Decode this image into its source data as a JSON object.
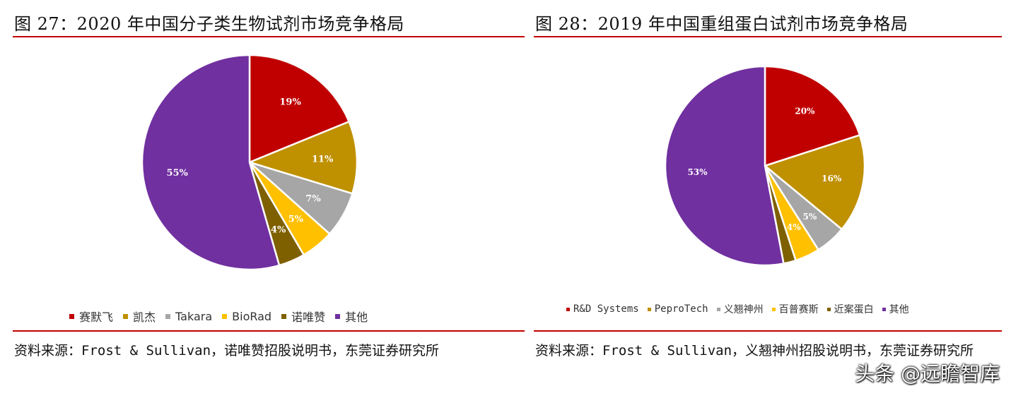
{
  "charts_panel": {
    "left": {
      "title": "图 27：2020 年中国分子类生物试剂市场竞争格局",
      "source": "资料来源：Frost & Sullivan，诺唯赞招股说明书，东莞证券研究所"
    },
    "right": {
      "title": "图 28：2019 年中国重组蛋白试剂市场竞争格局",
      "source": "资料来源：Frost & Sullivan，义翘神州招股说明书，东莞证券研究所"
    }
  },
  "watermark": "头条 @远瞻智库",
  "chart_data": [
    {
      "type": "pie",
      "title": "图 27：2020 年中国分子类生物试剂市场竞争格局",
      "start_angle_deg": 0,
      "direction": "clockwise",
      "legend_position": "bottom",
      "slices": [
        {
          "label": "赛默飞",
          "value": 19,
          "data_label": "19%",
          "color": "#c00000"
        },
        {
          "label": "凯杰",
          "value": 11,
          "data_label": "11%",
          "color": "#bf9000"
        },
        {
          "label": "Takara",
          "value": 7,
          "data_label": "7%",
          "color": "#a6a6a6"
        },
        {
          "label": "BioRad",
          "value": 5,
          "data_label": "5%",
          "color": "#ffc000"
        },
        {
          "label": "诺唯赞",
          "value": 4,
          "data_label": "4%",
          "color": "#7f6000"
        },
        {
          "label": "其他",
          "value": 55,
          "data_label": "55%",
          "color": "#7030a0"
        }
      ]
    },
    {
      "type": "pie",
      "title": "图 28：2019 年中国重组蛋白试剂市场竞争格局",
      "start_angle_deg": 0,
      "direction": "clockwise",
      "legend_position": "bottom",
      "slices": [
        {
          "label": "R&D Systems",
          "value": 20,
          "data_label": "20%",
          "color": "#c00000"
        },
        {
          "label": "PeproTech",
          "value": 16,
          "data_label": "16%",
          "color": "#bf9000"
        },
        {
          "label": "义翘神州",
          "value": 5,
          "data_label": "5%",
          "color": "#a6a6a6"
        },
        {
          "label": "百普赛斯",
          "value": 4,
          "data_label": "4%",
          "color": "#ffc000"
        },
        {
          "label": "近案蛋白",
          "value": 2,
          "data_label": "",
          "color": "#7f6000"
        },
        {
          "label": "其他",
          "value": 53,
          "data_label": "53%",
          "color": "#7030a0"
        }
      ]
    }
  ]
}
